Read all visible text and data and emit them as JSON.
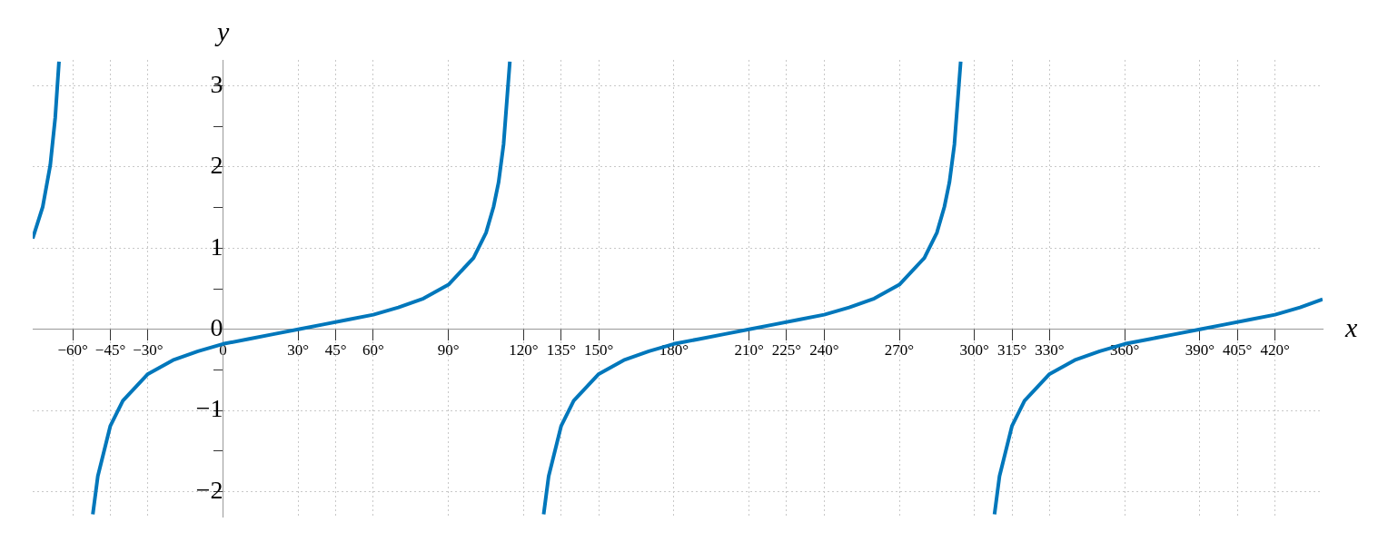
{
  "chart_data": {
    "type": "line",
    "xlabel": "x",
    "ylabel": "y",
    "xlim": [
      -76,
      439
    ],
    "ylim": [
      -2.31,
      3.32
    ],
    "xticks": [
      {
        "value": -60,
        "label": "−60°"
      },
      {
        "value": -45,
        "label": "−45°"
      },
      {
        "value": -30,
        "label": "−30°"
      },
      {
        "value": 0,
        "label": "0"
      },
      {
        "value": 30,
        "label": "30°"
      },
      {
        "value": 45,
        "label": "45°"
      },
      {
        "value": 60,
        "label": "60°"
      },
      {
        "value": 90,
        "label": "90°"
      },
      {
        "value": 120,
        "label": "120°"
      },
      {
        "value": 135,
        "label": "135°"
      },
      {
        "value": 150,
        "label": "150°"
      },
      {
        "value": 180,
        "label": "180°"
      },
      {
        "value": 210,
        "label": "210°"
      },
      {
        "value": 225,
        "label": "225°"
      },
      {
        "value": 240,
        "label": "240°"
      },
      {
        "value": 270,
        "label": "270°"
      },
      {
        "value": 300,
        "label": "300°"
      },
      {
        "value": 315,
        "label": "315°"
      },
      {
        "value": 330,
        "label": "330°"
      },
      {
        "value": 360,
        "label": "360°"
      },
      {
        "value": 390,
        "label": "390°"
      },
      {
        "value": 405,
        "label": "405°"
      },
      {
        "value": 420,
        "label": "420°"
      }
    ],
    "yticks": [
      {
        "value": -2,
        "label": "−2"
      },
      {
        "value": -1.5,
        "label": null
      },
      {
        "value": -1,
        "label": "−1"
      },
      {
        "value": -0.5,
        "label": null
      },
      0,
      {
        "value": 0.5,
        "label": null
      },
      1,
      {
        "value": 1.5,
        "label": null
      },
      2,
      {
        "value": 2.5,
        "label": null
      },
      3
    ],
    "grid": true,
    "legend": false,
    "marker": "none",
    "line_style": "solid",
    "series": [
      {
        "color": "#0077bb",
        "x": [
          -76,
          -72,
          -69,
          -67,
          -65.5,
          -60,
          -52,
          -50,
          -45,
          -40,
          -30,
          -20,
          -10,
          0,
          10,
          20,
          30,
          40,
          50,
          60,
          70,
          80,
          90,
          100,
          105,
          108,
          110,
          112,
          114.5,
          120,
          128,
          130,
          135,
          140,
          150,
          160,
          170,
          180,
          190,
          200,
          210,
          220,
          230,
          240,
          250,
          260,
          270,
          280,
          285,
          288,
          290,
          292,
          294.5,
          300,
          308,
          310,
          315,
          320,
          330,
          340,
          350,
          360,
          370,
          380,
          390,
          400,
          410,
          420,
          430,
          439
        ],
        "values": [
          1.12,
          1.51,
          2.02,
          2.61,
          3.3,
          null,
          -2.28,
          -1.81,
          -1.19,
          -0.88,
          -0.55,
          -0.38,
          -0.27,
          -0.18,
          -0.12,
          -0.06,
          0,
          0.06,
          0.12,
          0.18,
          0.27,
          0.38,
          0.55,
          0.88,
          1.19,
          1.51,
          1.81,
          2.28,
          3.3,
          null,
          -2.28,
          -1.81,
          -1.19,
          -0.88,
          -0.55,
          -0.38,
          -0.27,
          -0.18,
          -0.12,
          -0.06,
          0,
          0.06,
          0.12,
          0.18,
          0.27,
          0.38,
          0.55,
          0.88,
          1.19,
          1.51,
          1.81,
          2.28,
          3.3,
          null,
          -2.28,
          -1.81,
          -1.19,
          -0.88,
          -0.55,
          -0.38,
          -0.27,
          -0.18,
          -0.12,
          -0.06,
          0,
          0.06,
          0.12,
          0.18,
          0.27,
          0.37
        ]
      }
    ]
  }
}
